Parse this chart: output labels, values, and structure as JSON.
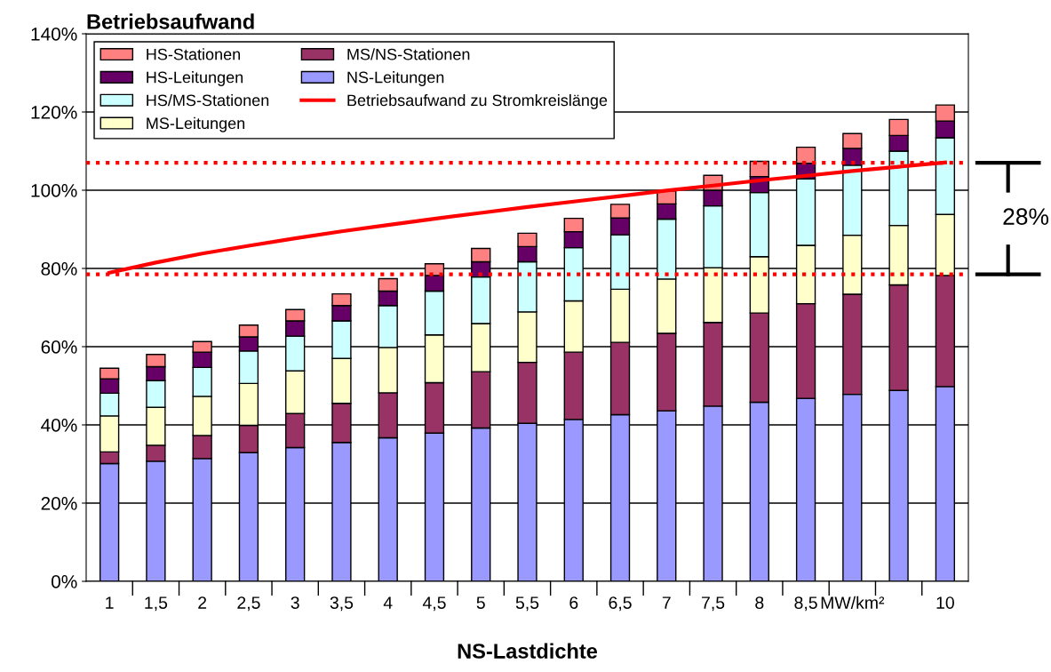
{
  "chart_data": {
    "type": "bar",
    "stacked": true,
    "title": "Betriebsaufwand",
    "xlabel": "NS-Lastdichte",
    "categories": [
      "1",
      "1,5",
      "2",
      "2,5",
      "3",
      "3,5",
      "4",
      "4,5",
      "5",
      "5,5",
      "6",
      "6,5",
      "7",
      "7,5",
      "8",
      "8,5",
      "MW/km²",
      null,
      "10"
    ],
    "series": [
      {
        "name": "NS-Leitungen",
        "color": "#9999ff",
        "values": [
          30.1,
          30.7,
          31.4,
          32.9,
          34.2,
          35.5,
          36.7,
          37.9,
          39.2,
          40.4,
          41.4,
          42.6,
          43.6,
          44.8,
          45.8,
          46.8,
          47.8,
          48.8,
          49.8
        ]
      },
      {
        "name": "MS/NS-Stationen",
        "color": "#993366",
        "values": [
          3.0,
          4.1,
          5.9,
          7.0,
          8.7,
          10.0,
          11.5,
          12.9,
          14.4,
          15.6,
          17.2,
          18.5,
          19.8,
          21.4,
          22.8,
          24.2,
          25.6,
          27.0,
          28.4
        ]
      },
      {
        "name": "MS-Leitungen",
        "color": "#ffffcc",
        "values": [
          9.2,
          9.7,
          10.0,
          10.7,
          10.9,
          11.5,
          11.6,
          12.2,
          12.3,
          12.9,
          13.1,
          13.6,
          13.9,
          14.0,
          14.4,
          14.9,
          15.1,
          15.2,
          15.6
        ]
      },
      {
        "name": "HS/MS-Stationen",
        "color": "#ccffff",
        "values": [
          5.8,
          6.8,
          7.4,
          8.3,
          8.9,
          9.6,
          10.7,
          11.2,
          11.9,
          12.8,
          13.6,
          13.9,
          15.3,
          15.8,
          16.4,
          17.0,
          17.9,
          19.0,
          19.6
        ]
      },
      {
        "name": "HS-Leitungen",
        "color": "#660066",
        "values": [
          3.7,
          3.6,
          3.9,
          3.6,
          3.9,
          3.9,
          3.7,
          4.0,
          3.9,
          3.9,
          4.1,
          4.3,
          3.9,
          4.0,
          4.1,
          4.0,
          4.3,
          4.0,
          4.3
        ]
      },
      {
        "name": "HS-Stationen",
        "color": "#ff8080",
        "values": [
          2.7,
          3.1,
          2.7,
          3.0,
          2.9,
          3.0,
          3.2,
          3.0,
          3.4,
          3.4,
          3.4,
          3.5,
          3.3,
          3.8,
          3.9,
          4.1,
          3.8,
          4.1,
          4.1
        ]
      },
      {
        "name": "Betriebsaufwand zu Stromkreislänge",
        "type": "line",
        "color": "#ff0000",
        "line_style": "solid",
        "values": [
          78.9,
          81.5,
          83.8,
          85.8,
          87.7,
          89.5,
          91.1,
          92.7,
          94.2,
          95.7,
          97.1,
          98.5,
          99.9,
          101.2,
          102.5,
          103.7,
          104.9,
          106.0,
          107.1
        ]
      }
    ],
    "ylim": [
      0,
      140
    ],
    "yticks": [
      {
        "value": 0,
        "label": "0%"
      },
      {
        "value": 20,
        "label": "20%"
      },
      {
        "value": 40,
        "label": "40%"
      },
      {
        "value": 60,
        "label": "60%"
      },
      {
        "value": 80,
        "label": "80%"
      },
      {
        "value": 100,
        "label": "100%"
      },
      {
        "value": 120,
        "label": "120%"
      },
      {
        "value": 140,
        "label": "140%"
      }
    ],
    "ref_lines": [
      {
        "axis": "y",
        "value": 78.5,
        "color": "#ff0000",
        "line_style": "dotted"
      },
      {
        "axis": "y",
        "value": 107.0,
        "color": "#ff0000",
        "line_style": "dotted"
      }
    ],
    "annotations": [
      "28%"
    ],
    "grid": "y",
    "legend": "top left"
  }
}
